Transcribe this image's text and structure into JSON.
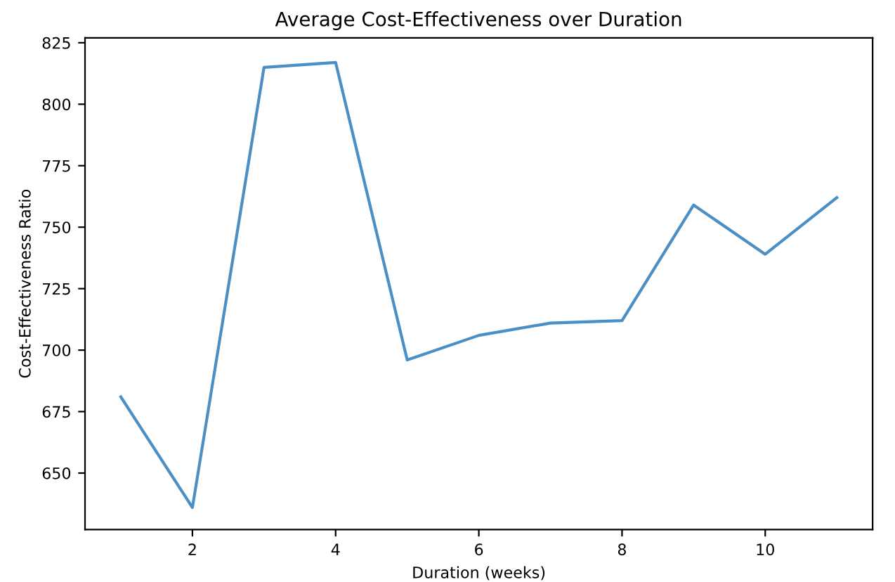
{
  "chart_data": {
    "type": "line",
    "title": "Average Cost-Effectiveness over Duration",
    "xlabel": "Duration (weeks)",
    "ylabel": "Cost-Effectiveness Ratio",
    "x": [
      1,
      2,
      3,
      4,
      5,
      6,
      7,
      8,
      9,
      10,
      11
    ],
    "series": [
      {
        "color": "#4b8fc4",
        "values": [
          681,
          636,
          815,
          817,
          696,
          706,
          711,
          712,
          759,
          739,
          762
        ]
      }
    ],
    "xlim": [
      0.5,
      11.5
    ],
    "xticks": [
      2,
      4,
      6,
      8,
      10
    ],
    "ylim": [
      627,
      827
    ],
    "yticks": [
      650,
      675,
      700,
      725,
      750,
      775,
      800,
      825
    ],
    "grid": false,
    "legend": false,
    "marker": "none",
    "line_style": "solid"
  }
}
